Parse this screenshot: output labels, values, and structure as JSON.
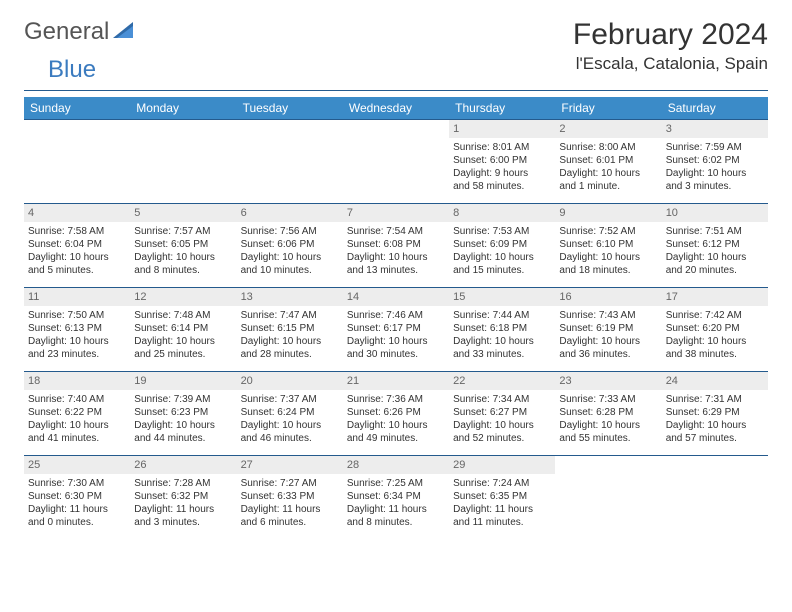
{
  "brand": {
    "part1": "General",
    "part2": "Blue"
  },
  "title": "February 2024",
  "location": "l'Escala, Catalonia, Spain",
  "colors": {
    "header_bg": "#3b8bc8",
    "header_text": "#ffffff",
    "rule": "#245a8d",
    "daynum_bg": "#ededed",
    "text": "#333333"
  },
  "day_headers": [
    "Sunday",
    "Monday",
    "Tuesday",
    "Wednesday",
    "Thursday",
    "Friday",
    "Saturday"
  ],
  "weeks": [
    [
      null,
      null,
      null,
      null,
      {
        "n": "1",
        "sr": "Sunrise: 8:01 AM",
        "ss": "Sunset: 6:00 PM",
        "d1": "Daylight: 9 hours",
        "d2": "and 58 minutes."
      },
      {
        "n": "2",
        "sr": "Sunrise: 8:00 AM",
        "ss": "Sunset: 6:01 PM",
        "d1": "Daylight: 10 hours",
        "d2": "and 1 minute."
      },
      {
        "n": "3",
        "sr": "Sunrise: 7:59 AM",
        "ss": "Sunset: 6:02 PM",
        "d1": "Daylight: 10 hours",
        "d2": "and 3 minutes."
      }
    ],
    [
      {
        "n": "4",
        "sr": "Sunrise: 7:58 AM",
        "ss": "Sunset: 6:04 PM",
        "d1": "Daylight: 10 hours",
        "d2": "and 5 minutes."
      },
      {
        "n": "5",
        "sr": "Sunrise: 7:57 AM",
        "ss": "Sunset: 6:05 PM",
        "d1": "Daylight: 10 hours",
        "d2": "and 8 minutes."
      },
      {
        "n": "6",
        "sr": "Sunrise: 7:56 AM",
        "ss": "Sunset: 6:06 PM",
        "d1": "Daylight: 10 hours",
        "d2": "and 10 minutes."
      },
      {
        "n": "7",
        "sr": "Sunrise: 7:54 AM",
        "ss": "Sunset: 6:08 PM",
        "d1": "Daylight: 10 hours",
        "d2": "and 13 minutes."
      },
      {
        "n": "8",
        "sr": "Sunrise: 7:53 AM",
        "ss": "Sunset: 6:09 PM",
        "d1": "Daylight: 10 hours",
        "d2": "and 15 minutes."
      },
      {
        "n": "9",
        "sr": "Sunrise: 7:52 AM",
        "ss": "Sunset: 6:10 PM",
        "d1": "Daylight: 10 hours",
        "d2": "and 18 minutes."
      },
      {
        "n": "10",
        "sr": "Sunrise: 7:51 AM",
        "ss": "Sunset: 6:12 PM",
        "d1": "Daylight: 10 hours",
        "d2": "and 20 minutes."
      }
    ],
    [
      {
        "n": "11",
        "sr": "Sunrise: 7:50 AM",
        "ss": "Sunset: 6:13 PM",
        "d1": "Daylight: 10 hours",
        "d2": "and 23 minutes."
      },
      {
        "n": "12",
        "sr": "Sunrise: 7:48 AM",
        "ss": "Sunset: 6:14 PM",
        "d1": "Daylight: 10 hours",
        "d2": "and 25 minutes."
      },
      {
        "n": "13",
        "sr": "Sunrise: 7:47 AM",
        "ss": "Sunset: 6:15 PM",
        "d1": "Daylight: 10 hours",
        "d2": "and 28 minutes."
      },
      {
        "n": "14",
        "sr": "Sunrise: 7:46 AM",
        "ss": "Sunset: 6:17 PM",
        "d1": "Daylight: 10 hours",
        "d2": "and 30 minutes."
      },
      {
        "n": "15",
        "sr": "Sunrise: 7:44 AM",
        "ss": "Sunset: 6:18 PM",
        "d1": "Daylight: 10 hours",
        "d2": "and 33 minutes."
      },
      {
        "n": "16",
        "sr": "Sunrise: 7:43 AM",
        "ss": "Sunset: 6:19 PM",
        "d1": "Daylight: 10 hours",
        "d2": "and 36 minutes."
      },
      {
        "n": "17",
        "sr": "Sunrise: 7:42 AM",
        "ss": "Sunset: 6:20 PM",
        "d1": "Daylight: 10 hours",
        "d2": "and 38 minutes."
      }
    ],
    [
      {
        "n": "18",
        "sr": "Sunrise: 7:40 AM",
        "ss": "Sunset: 6:22 PM",
        "d1": "Daylight: 10 hours",
        "d2": "and 41 minutes."
      },
      {
        "n": "19",
        "sr": "Sunrise: 7:39 AM",
        "ss": "Sunset: 6:23 PM",
        "d1": "Daylight: 10 hours",
        "d2": "and 44 minutes."
      },
      {
        "n": "20",
        "sr": "Sunrise: 7:37 AM",
        "ss": "Sunset: 6:24 PM",
        "d1": "Daylight: 10 hours",
        "d2": "and 46 minutes."
      },
      {
        "n": "21",
        "sr": "Sunrise: 7:36 AM",
        "ss": "Sunset: 6:26 PM",
        "d1": "Daylight: 10 hours",
        "d2": "and 49 minutes."
      },
      {
        "n": "22",
        "sr": "Sunrise: 7:34 AM",
        "ss": "Sunset: 6:27 PM",
        "d1": "Daylight: 10 hours",
        "d2": "and 52 minutes."
      },
      {
        "n": "23",
        "sr": "Sunrise: 7:33 AM",
        "ss": "Sunset: 6:28 PM",
        "d1": "Daylight: 10 hours",
        "d2": "and 55 minutes."
      },
      {
        "n": "24",
        "sr": "Sunrise: 7:31 AM",
        "ss": "Sunset: 6:29 PM",
        "d1": "Daylight: 10 hours",
        "d2": "and 57 minutes."
      }
    ],
    [
      {
        "n": "25",
        "sr": "Sunrise: 7:30 AM",
        "ss": "Sunset: 6:30 PM",
        "d1": "Daylight: 11 hours",
        "d2": "and 0 minutes."
      },
      {
        "n": "26",
        "sr": "Sunrise: 7:28 AM",
        "ss": "Sunset: 6:32 PM",
        "d1": "Daylight: 11 hours",
        "d2": "and 3 minutes."
      },
      {
        "n": "27",
        "sr": "Sunrise: 7:27 AM",
        "ss": "Sunset: 6:33 PM",
        "d1": "Daylight: 11 hours",
        "d2": "and 6 minutes."
      },
      {
        "n": "28",
        "sr": "Sunrise: 7:25 AM",
        "ss": "Sunset: 6:34 PM",
        "d1": "Daylight: 11 hours",
        "d2": "and 8 minutes."
      },
      {
        "n": "29",
        "sr": "Sunrise: 7:24 AM",
        "ss": "Sunset: 6:35 PM",
        "d1": "Daylight: 11 hours",
        "d2": "and 11 minutes."
      },
      null,
      null
    ]
  ]
}
